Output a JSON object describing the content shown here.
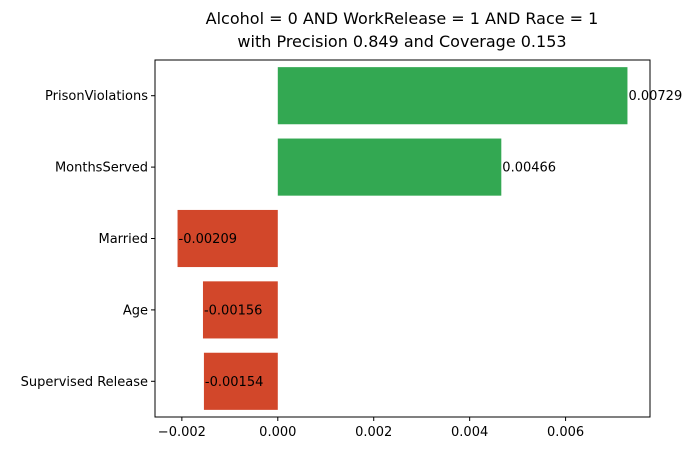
{
  "chart_data": {
    "type": "bar",
    "orientation": "horizontal",
    "title": [
      "Alcohol = 0 AND WorkRelease = 1 AND Race = 1",
      "with Precision 0.849 and Coverage 0.153"
    ],
    "xlabel": "",
    "ylabel": "",
    "categories": [
      "PrisonViolations",
      "MonthsServed",
      "Married",
      "Age",
      "Supervised Release"
    ],
    "values": [
      0.00729,
      0.00466,
      -0.00209,
      -0.00156,
      -0.00154
    ],
    "value_labels": [
      "0.00729",
      "0.00466",
      "-0.00209",
      "-0.00156",
      "-0.00154"
    ],
    "xlim": [
      -0.00256,
      0.00776
    ],
    "xticks": [
      -0.002,
      0.0,
      0.002,
      0.004,
      0.006
    ],
    "xtick_labels": [
      "−0.002",
      "0.000",
      "0.002",
      "0.004",
      "0.006"
    ],
    "grid": false,
    "legend": "none",
    "colors": {
      "positive": "#33a852",
      "negative": "#d2472a"
    }
  }
}
